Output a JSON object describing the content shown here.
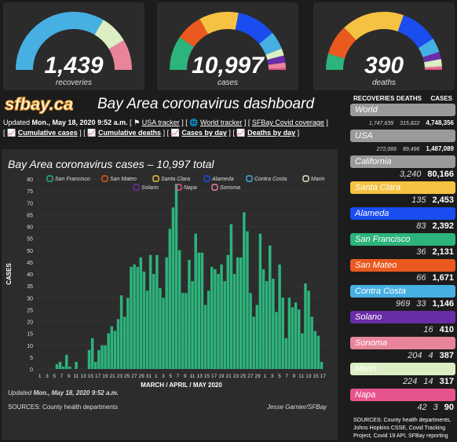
{
  "gauges": [
    {
      "value": "1,439",
      "label": "recoveries"
    },
    {
      "value": "10,997",
      "label": "cases"
    },
    {
      "value": "390",
      "label": "deaths"
    }
  ],
  "header": {
    "logo": "sfbay.ca",
    "title": "Bay Area coronavirus dashboard"
  },
  "links": {
    "updated_prefix": "Updated ",
    "updated": "Mon., May 18, 2020 9:52 a.m.",
    "usa": "USA tracker",
    "world": "World tracker",
    "sfbay": "SFBay Covid coverage",
    "cumulative_cases": "Cumulative cases",
    "cumulative_deaths": "Cumulative deaths",
    "cases_by_day": "Cases by day",
    "deaths_by_day": "Deaths by day"
  },
  "sidebar": {
    "headers": {
      "recoveries": "RECOVERIES",
      "deaths": "DEATHS",
      "cases": "CASES"
    },
    "rows": [
      {
        "name": "World",
        "color": "#9a9a9a",
        "recoveries": "1,747,639",
        "deaths": "315,822",
        "cases": "4,748,356"
      },
      {
        "name": "USA",
        "color": "#9a9a9a",
        "recoveries": "272,066",
        "deaths": "89,496",
        "cases": "1,487,089"
      },
      {
        "name": "California",
        "color": "#9a9a9a",
        "recoveries": "",
        "deaths": "3,240",
        "cases": "80,166"
      },
      {
        "name": "Santa Clara",
        "color": "#f5c242",
        "recoveries": "",
        "deaths": "135",
        "cases": "2,453"
      },
      {
        "name": "Alameda",
        "color": "#1a4cf0",
        "recoveries": "",
        "deaths": "83",
        "cases": "2,392"
      },
      {
        "name": "San Francisco",
        "color": "#2db37c",
        "recoveries": "",
        "deaths": "36",
        "cases": "2,131"
      },
      {
        "name": "San Mateo",
        "color": "#ea5a1f",
        "recoveries": "",
        "deaths": "66",
        "cases": "1,671"
      },
      {
        "name": "Contra Costa",
        "color": "#47b0e2",
        "recoveries": "969",
        "deaths": "33",
        "cases": "1,146"
      },
      {
        "name": "Solano",
        "color": "#6a2da8",
        "recoveries": "",
        "deaths": "16",
        "cases": "410"
      },
      {
        "name": "Sonoma",
        "color": "#e8859b",
        "recoveries": "204",
        "deaths": "4",
        "cases": "387"
      },
      {
        "name": "Marin",
        "color": "#dcefc4",
        "recoveries": "224",
        "deaths": "14",
        "cases": "317"
      },
      {
        "name": "Napa",
        "color": "#e7548d",
        "recoveries": "42",
        "deaths": "3",
        "cases": "90"
      }
    ],
    "sources": "SOURCES: County health departments, Johns Hopkins CSSE, Covid Tracking Project, Covid 19 API, SFBay reporting"
  },
  "chart": {
    "title": "Bay Area coronavirus cases – 10,997 total",
    "footer_updated_prefix": "Updated ",
    "footer_updated": "Mon., May 18, 2020 9:52 a.m.",
    "sources": "SOURCES: County health departments",
    "credit": "Jesse Garnier/SFBay"
  },
  "chart_data": {
    "type": "bar",
    "title": "Bay Area coronavirus cases – 10,997 total",
    "ylabel": "CASES",
    "xlabel": "MARCH / APRIL / MAY 2020",
    "ylim": [
      0,
      80
    ],
    "yticks": [
      0,
      5,
      10,
      15,
      20,
      25,
      30,
      35,
      40,
      45,
      50,
      55,
      60,
      65,
      70,
      75,
      80
    ],
    "legend": [
      "San Francisco",
      "San Mateo",
      "Santa Clara",
      "Alameda",
      "Contra Costa",
      "Marin",
      "Solano",
      "Napa",
      "Sonoma"
    ],
    "legend_colors": [
      "#2db37c",
      "#ea5a1f",
      "#f5c242",
      "#1a4cf0",
      "#47b0e2",
      "#dcefc4",
      "#6a2da8",
      "#e7548d",
      "#e8859b"
    ],
    "xtick_labels": [
      "1",
      "3",
      "5",
      "7",
      "9",
      "11",
      "13",
      "15",
      "17",
      "19",
      "21",
      "23",
      "25",
      "27",
      "29",
      "31",
      "1",
      "3",
      "5",
      "7",
      "9",
      "11",
      "13",
      "15",
      "17",
      "19",
      "21",
      "23",
      "25",
      "27",
      "29",
      "1",
      "3",
      "5",
      "7",
      "9",
      "11",
      "13",
      "15",
      "17"
    ],
    "series": [
      {
        "name": "San Francisco",
        "values": [
          0,
          0,
          0,
          0,
          0,
          2,
          3,
          1,
          6,
          1,
          0,
          3,
          0,
          0,
          0,
          8,
          13,
          3,
          8,
          10,
          10,
          15,
          18,
          16,
          21,
          31,
          22,
          30,
          43,
          44,
          43,
          47,
          41,
          33,
          48,
          40,
          48,
          34,
          30,
          47,
          59,
          68,
          78,
          50,
          32,
          32,
          46,
          37,
          57,
          49,
          49,
          27,
          33,
          43,
          42,
          40,
          44,
          37,
          48,
          61,
          40,
          47,
          47,
          66,
          58,
          32,
          22,
          27,
          57,
          42,
          37,
          52,
          38,
          24,
          44,
          30,
          13,
          30,
          26,
          28,
          25,
          15,
          36,
          33,
          22,
          16,
          14,
          3
        ]
      }
    ]
  }
}
